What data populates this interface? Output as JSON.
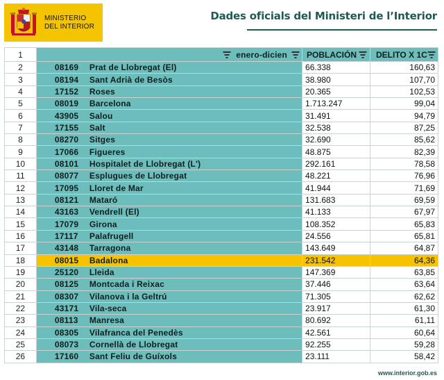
{
  "header": {
    "ministry_line1": "MINISTERIO",
    "ministry_line2": "DEL INTERIOR",
    "page_title": "Dades oficials del Ministeri de l’Interior",
    "crest_icon": "spain-coat-of-arms-icon",
    "brand_color": "#f5c400",
    "accent_color": "#1f5a55"
  },
  "table": {
    "header_row_index": "1",
    "col_period": "enero-dicien",
    "col_population": "POBLACIÓN",
    "col_crime": "DELITO X 1C",
    "highlight_color": "#f7c300",
    "teal_color": "#6cbdbb",
    "rows": [
      {
        "idx": "2",
        "code": "08169",
        "name": "Prat de Llobregat (El)",
        "pop": "66.338",
        "rate": "160,63"
      },
      {
        "idx": "3",
        "code": "08194",
        "name": "Sant Adrià de Besòs",
        "pop": "38.980",
        "rate": "107,70"
      },
      {
        "idx": "4",
        "code": "17152",
        "name": "Roses",
        "pop": "20.365",
        "rate": "102,53"
      },
      {
        "idx": "5",
        "code": "08019",
        "name": "Barcelona",
        "pop": "1.713.247",
        "rate": "99,04"
      },
      {
        "idx": "6",
        "code": "43905",
        "name": "Salou",
        "pop": "31.491",
        "rate": "94,79"
      },
      {
        "idx": "7",
        "code": "17155",
        "name": "Salt",
        "pop": "32.538",
        "rate": "87,25"
      },
      {
        "idx": "8",
        "code": "08270",
        "name": "Sitges",
        "pop": "32.690",
        "rate": "85,62"
      },
      {
        "idx": "9",
        "code": "17066",
        "name": "Figueres",
        "pop": "48.875",
        "rate": "82,39"
      },
      {
        "idx": "10",
        "code": "08101",
        "name": "Hospitalet de Llobregat (L')",
        "pop": "292.161",
        "rate": "78,58"
      },
      {
        "idx": "11",
        "code": "08077",
        "name": "Esplugues de Llobregat",
        "pop": "48.221",
        "rate": "76,96"
      },
      {
        "idx": "12",
        "code": "17095",
        "name": "Lloret de Mar",
        "pop": "41.944",
        "rate": "71,69"
      },
      {
        "idx": "13",
        "code": "08121",
        "name": "Mataró",
        "pop": "131.683",
        "rate": "69,59"
      },
      {
        "idx": "14",
        "code": "43163",
        "name": "Vendrell (El)",
        "pop": "41.133",
        "rate": "67,97"
      },
      {
        "idx": "15",
        "code": "17079",
        "name": "Girona",
        "pop": "108.352",
        "rate": "65,83"
      },
      {
        "idx": "16",
        "code": "17117",
        "name": "Palafrugell",
        "pop": "24.556",
        "rate": "65,81"
      },
      {
        "idx": "17",
        "code": "43148",
        "name": "Tarragona",
        "pop": "143.649",
        "rate": "64,87"
      },
      {
        "idx": "18",
        "code": "08015",
        "name": "Badalona",
        "pop": "231.542",
        "rate": "64,36",
        "highlight": true
      },
      {
        "idx": "19",
        "code": "25120",
        "name": "Lleida",
        "pop": "147.369",
        "rate": "63,85"
      },
      {
        "idx": "20",
        "code": "08125",
        "name": "Montcada i Reixac",
        "pop": "37.446",
        "rate": "63,64"
      },
      {
        "idx": "21",
        "code": "08307",
        "name": "Vilanova i la Geltrú",
        "pop": "71.305",
        "rate": "62,62"
      },
      {
        "idx": "22",
        "code": "43171",
        "name": "Vila-seca",
        "pop": "23.917",
        "rate": "61,30"
      },
      {
        "idx": "23",
        "code": "08113",
        "name": "Manresa",
        "pop": "80.692",
        "rate": "61,11"
      },
      {
        "idx": "24",
        "code": "08305",
        "name": "Vilafranca del Penedès",
        "pop": "42.561",
        "rate": "60,64"
      },
      {
        "idx": "25",
        "code": "08073",
        "name": "Cornellà de Llobregat",
        "pop": "92.255",
        "rate": "59,28"
      },
      {
        "idx": "26",
        "code": "17160",
        "name": "Sant Feliu de Guíxols",
        "pop": "23.111",
        "rate": "58,42"
      }
    ]
  },
  "footer": {
    "url": "www.interior.gob.es"
  }
}
